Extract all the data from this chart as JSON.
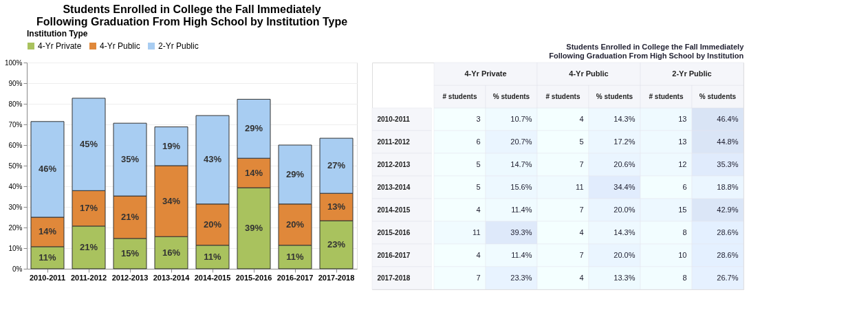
{
  "chart_data": [
    {
      "type": "bar",
      "title": "Students Enrolled in College the Fall Immediately Following Graduation From High School by Institution Type",
      "legend_title": "Institution Type",
      "legend": "top",
      "stacked": true,
      "grid": "y",
      "categories": [
        "2010-2011",
        "2011-2012",
        "2012-2013",
        "2013-2014",
        "2014-2015",
        "2015-2016",
        "2016-2017",
        "2017-2018"
      ],
      "ylim": [
        0,
        100
      ],
      "yticks": [
        {
          "value": 0,
          "label": "0%"
        },
        {
          "value": 10,
          "label": "10%"
        },
        {
          "value": 20,
          "label": "20%"
        },
        {
          "value": 30,
          "label": "30%"
        },
        {
          "value": 40,
          "label": "40%"
        },
        {
          "value": 50,
          "label": "50%"
        },
        {
          "value": 60,
          "label": "60%"
        },
        {
          "value": 70,
          "label": "70%"
        },
        {
          "value": 80,
          "label": "80%"
        },
        {
          "value": 90,
          "label": "90%"
        },
        {
          "value": 100,
          "label": "100%"
        }
      ],
      "series": [
        {
          "name": "4-Yr Private",
          "color": "#a9c25e",
          "values": [
            10.7,
            20.7,
            14.7,
            15.6,
            11.4,
            39.3,
            11.4,
            23.3
          ],
          "value_labels": [
            "11%",
            "21%",
            "15%",
            "16%",
            "11%",
            "39%",
            "11%",
            "23%"
          ]
        },
        {
          "name": "4-Yr Public",
          "color": "#e0883a",
          "values": [
            14.3,
            17.2,
            20.6,
            34.4,
            20.0,
            14.3,
            20.0,
            13.3
          ],
          "value_labels": [
            "14%",
            "17%",
            "21%",
            "34%",
            "20%",
            "14%",
            "20%",
            "13%"
          ]
        },
        {
          "name": "2-Yr Public",
          "color": "#a8cdf2",
          "values": [
            46.4,
            44.8,
            35.3,
            18.8,
            42.9,
            28.6,
            28.6,
            26.7
          ],
          "value_labels": [
            "46%",
            "45%",
            "35%",
            "19%",
            "43%",
            "29%",
            "29%",
            "27%"
          ]
        }
      ]
    },
    {
      "type": "heatmap",
      "title": "Students Enrolled in College the Fall Immediately Following Graduation From High School by Institution",
      "annotations": [
        "4-Yr Private",
        "4-Yr Public",
        "2-Yr Public"
      ],
      "categories": [
        "# students",
        "% students",
        "# students",
        "% students",
        "# students",
        "% students"
      ],
      "y_categories": [
        "2010-2011",
        "2011-2012",
        "2012-2013",
        "2013-2014",
        "2014-2015",
        "2015-2016",
        "2016-2017",
        "2017-2018"
      ],
      "cells": [
        [
          3,
          10.7,
          4,
          14.3,
          13,
          46.4
        ],
        [
          6,
          20.7,
          5,
          17.2,
          13,
          44.8
        ],
        [
          5,
          14.7,
          7,
          20.6,
          12,
          35.3
        ],
        [
          5,
          15.6,
          11,
          34.4,
          6,
          18.8
        ],
        [
          4,
          11.4,
          7,
          20.0,
          15,
          42.9
        ],
        [
          11,
          39.3,
          4,
          14.3,
          8,
          28.6
        ],
        [
          4,
          11.4,
          7,
          20.0,
          10,
          28.6
        ],
        [
          7,
          23.3,
          4,
          13.3,
          8,
          26.7
        ]
      ],
      "cell_labels": [
        [
          "3",
          "10.7%",
          "4",
          "14.3%",
          "13",
          "46.4%"
        ],
        [
          "6",
          "20.7%",
          "5",
          "17.2%",
          "13",
          "44.8%"
        ],
        [
          "5",
          "14.7%",
          "7",
          "20.6%",
          "12",
          "35.3%"
        ],
        [
          "5",
          "15.6%",
          "11",
          "34.4%",
          "6",
          "18.8%"
        ],
        [
          "4",
          "11.4%",
          "7",
          "20.0%",
          "15",
          "42.9%"
        ],
        [
          "11",
          "39.3%",
          "4",
          "14.3%",
          "8",
          "28.6%"
        ],
        [
          "4",
          "11.4%",
          "7",
          "20.0%",
          "10",
          "28.6%"
        ],
        [
          "7",
          "23.3%",
          "4",
          "13.3%",
          "8",
          "26.7%"
        ]
      ]
    }
  ]
}
